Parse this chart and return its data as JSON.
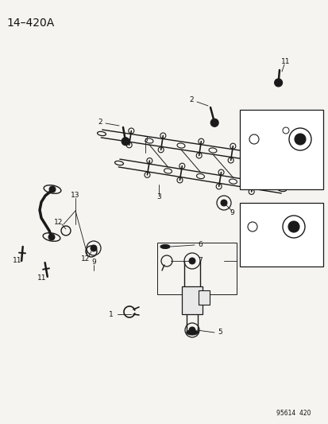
{
  "title": "14–420A",
  "footer": "95614  420",
  "bg_color": "#f5f4f0",
  "line_color": "#1a1a1a",
  "text_color": "#111111",
  "fig_width": 4.14,
  "fig_height": 5.33,
  "dpi": 100
}
